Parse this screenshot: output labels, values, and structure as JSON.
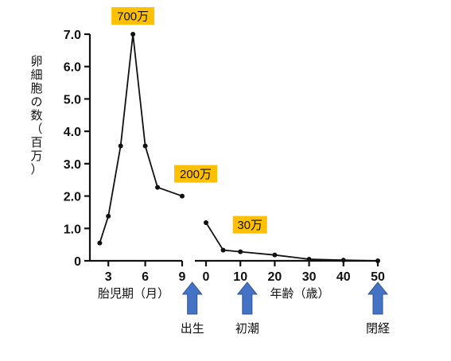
{
  "chart_data": {
    "type": "line",
    "ylabel": "卵細胞の数（百万）",
    "ylim": [
      0,
      7.0
    ],
    "yticks": [
      "0",
      "1.0",
      "2.0",
      "3.0",
      "4.0",
      "5.0",
      "6.0",
      "7.0"
    ],
    "panels": [
      {
        "xlabel": "胎児期（月）",
        "xlim": [
          1.5,
          9
        ],
        "xticks": [
          3,
          6,
          9
        ],
        "series": [
          {
            "x": [
              2.3,
              3,
              4,
              5,
              6,
              7,
              9
            ],
            "values": [
              0.55,
              1.38,
              3.55,
              7.0,
              3.55,
              2.27,
              2.0
            ]
          }
        ]
      },
      {
        "xlabel": "年齢（歳）",
        "xlim": [
          0,
          50
        ],
        "xticks": [
          0,
          10,
          20,
          30,
          40,
          50
        ],
        "series": [
          {
            "x": [
              0,
              5,
              10,
              20,
              30,
              40,
              50
            ],
            "values": [
              1.18,
              0.33,
              0.28,
              0.18,
              0.05,
              0.02,
              0.0
            ]
          }
        ]
      }
    ],
    "annotations": [
      {
        "text": "700万",
        "panel": 0,
        "x": 5,
        "y": 7.0
      },
      {
        "text": "200万",
        "panel": 0,
        "x": 9,
        "y": 2.0
      },
      {
        "text": "30万",
        "panel": 1,
        "x": 10,
        "y": 0.28
      }
    ],
    "events": [
      {
        "label": "出生",
        "panel": 1,
        "x": -4
      },
      {
        "label": "初潮",
        "panel": 1,
        "x": 12
      },
      {
        "label": "閉経",
        "panel": 1,
        "x": 50
      }
    ],
    "colors": {
      "callout": "#FFC000",
      "arrow": "#4472C4",
      "line": "#111111"
    }
  }
}
